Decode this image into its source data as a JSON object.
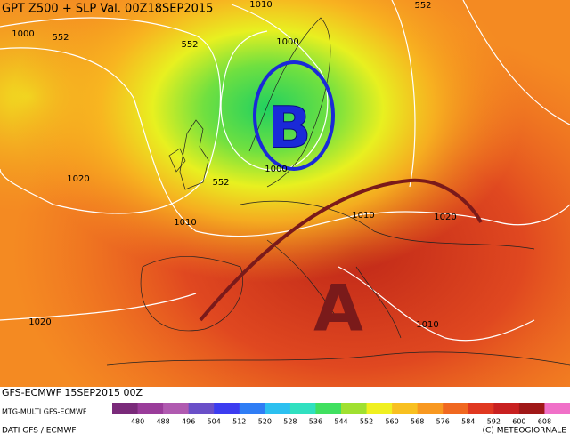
{
  "title": "GPT Z500 + SLP Val. 00Z18SEP2015",
  "map_labels": [
    "1000",
    "552",
    "552",
    "1000",
    "1010",
    "552",
    "1020",
    "552",
    "1000",
    "1010",
    "1010",
    "1020",
    "1010",
    "1020"
  ],
  "pressure_centers": [
    "B",
    "A"
  ],
  "footer": {
    "model_run": "GFS-ECMWF 15SEP2015 00Z",
    "product": "MTG-MULTI GFS-ECMWF",
    "source": "DATI GFS / ECMWF",
    "copyright": "(C) METEOGIORNALE"
  },
  "colorbar": {
    "ticks": [
      480,
      488,
      496,
      504,
      512,
      520,
      528,
      536,
      544,
      552,
      560,
      568,
      576,
      584,
      592,
      600,
      608
    ],
    "colors": [
      "#7a2a7a",
      "#9a3c9a",
      "#b05ab0",
      "#6a4fc8",
      "#3c3cf0",
      "#2f7df5",
      "#2cc0f0",
      "#30e0c0",
      "#40e060",
      "#a0e030",
      "#f0f020",
      "#f8c020",
      "#f89820",
      "#f06820",
      "#e03820",
      "#c82020",
      "#a01818",
      "#f070c8"
    ]
  }
}
